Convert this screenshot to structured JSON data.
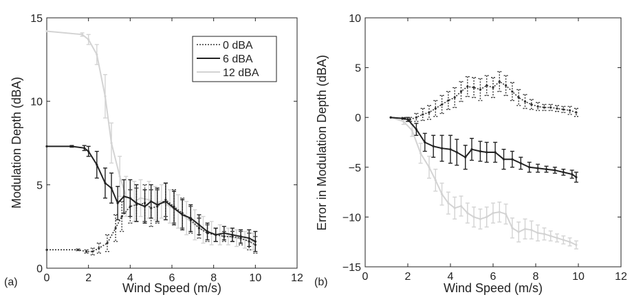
{
  "chart_data": [
    {
      "type": "line",
      "panel_label": "(a)",
      "xlabel": "Wind Speed (m/s)",
      "ylabel": "Modulation Depth (dBA)",
      "xlim": [
        0,
        12
      ],
      "ylim": [
        0,
        15
      ],
      "xticks": [
        "0",
        "2",
        "4",
        "6",
        "8",
        "10",
        "12"
      ],
      "yticks": [
        "0",
        "5",
        "10",
        "15"
      ],
      "grid": false,
      "legend_position": "top-right",
      "error_bars": true,
      "series": [
        {
          "name": "0 dBA",
          "style": "dotted",
          "color": "#333333",
          "x": [
            0.0,
            1.5,
            1.9,
            2.2,
            2.5,
            2.9,
            3.3,
            3.6,
            4.0,
            4.3,
            4.7,
            5.0,
            5.3,
            5.7,
            6.1,
            6.5,
            6.9,
            7.3,
            7.7,
            8.1,
            8.5,
            8.9,
            9.3,
            9.7,
            10.0
          ],
          "y": [
            1.1,
            1.1,
            1.0,
            1.0,
            1.2,
            1.5,
            2.4,
            3.1,
            3.7,
            3.8,
            3.9,
            3.6,
            3.7,
            4.1,
            3.7,
            3.3,
            2.9,
            2.4,
            2.1,
            2.0,
            1.9,
            1.9,
            1.8,
            1.6,
            1.4
          ],
          "err": [
            0,
            0.05,
            0.1,
            0.2,
            0.3,
            0.5,
            0.8,
            0.9,
            1.0,
            1.0,
            1.1,
            1.1,
            1.0,
            1.0,
            1.0,
            0.9,
            0.8,
            0.6,
            0.5,
            0.4,
            0.3,
            0.3,
            0.4,
            0.5,
            0.5
          ]
        },
        {
          "name": "6 dBA",
          "style": "solid",
          "color": "#222222",
          "x": [
            0.0,
            1.2,
            1.8,
            2.0,
            2.4,
            2.8,
            3.1,
            3.4,
            3.7,
            4.0,
            4.3,
            4.7,
            5.0,
            5.3,
            5.7,
            6.1,
            6.5,
            6.9,
            7.3,
            7.7,
            8.1,
            8.5,
            8.9,
            9.3,
            9.7,
            10.0
          ],
          "y": [
            7.3,
            7.3,
            7.2,
            7.0,
            6.2,
            5.1,
            4.8,
            3.9,
            4.3,
            4.2,
            3.9,
            3.7,
            4.0,
            3.8,
            4.0,
            3.6,
            3.2,
            3.0,
            2.6,
            2.2,
            2.0,
            2.1,
            2.0,
            1.9,
            1.8,
            1.6
          ],
          "err": [
            0,
            0.05,
            0.15,
            0.3,
            0.8,
            0.9,
            0.9,
            1.0,
            1.0,
            1.1,
            1.1,
            1.0,
            1.0,
            1.0,
            1.1,
            1.0,
            0.9,
            0.8,
            0.6,
            0.5,
            0.4,
            0.4,
            0.4,
            0.4,
            0.5,
            0.6
          ]
        },
        {
          "name": "12 dBA",
          "style": "solid",
          "color": "#d3d3d3",
          "x": [
            0.0,
            1.7,
            2.0,
            2.4,
            2.8,
            3.1,
            3.5,
            3.8,
            4.2,
            4.5,
            4.9,
            5.2,
            5.5,
            5.9,
            6.3,
            6.7,
            7.1,
            7.5,
            7.9,
            8.3,
            8.7,
            9.1,
            9.5,
            9.9
          ],
          "y": [
            14.2,
            14.0,
            13.7,
            12.8,
            10.3,
            7.5,
            5.5,
            4.3,
            4.0,
            4.2,
            4.1,
            3.9,
            4.0,
            3.7,
            3.4,
            3.0,
            2.6,
            2.3,
            2.1,
            2.0,
            1.9,
            1.8,
            1.7,
            1.6
          ],
          "err": [
            0,
            0.1,
            0.3,
            0.6,
            1.3,
            1.2,
            1.2,
            1.2,
            1.2,
            1.1,
            1.1,
            1.0,
            1.0,
            1.0,
            1.0,
            1.0,
            0.9,
            0.8,
            0.7,
            0.6,
            0.5,
            0.5,
            0.5,
            0.5
          ]
        }
      ]
    },
    {
      "type": "line",
      "panel_label": "(b)",
      "xlabel": "Wind Speed (m/s)",
      "ylabel": "Error in Modulation Depth (dBA)",
      "xlim": [
        0,
        12
      ],
      "ylim": [
        -15,
        10
      ],
      "xticks": [
        "0",
        "2",
        "4",
        "6",
        "8",
        "10",
        "12"
      ],
      "yticks": [
        "−15",
        "−10",
        "−5",
        "0",
        "5",
        "10"
      ],
      "grid": false,
      "error_bars": true,
      "series": [
        {
          "name": "0 dBA",
          "style": "dotted",
          "color": "#333333",
          "x": [
            1.2,
            1.8,
            2.1,
            2.4,
            2.7,
            3.0,
            3.3,
            3.6,
            3.9,
            4.2,
            4.5,
            4.8,
            5.1,
            5.4,
            5.7,
            6.0,
            6.3,
            6.6,
            6.9,
            7.2,
            7.5,
            7.8,
            8.1,
            8.4,
            8.7,
            9.0,
            9.3,
            9.6,
            9.9
          ],
          "y": [
            0.0,
            -0.1,
            -0.2,
            0.0,
            0.3,
            0.5,
            0.9,
            1.3,
            1.7,
            2.0,
            2.6,
            3.1,
            3.0,
            2.8,
            3.2,
            3.0,
            3.6,
            3.2,
            2.6,
            2.0,
            1.6,
            1.3,
            1.1,
            1.0,
            1.0,
            0.9,
            0.8,
            0.7,
            0.5
          ],
          "err": [
            0,
            0.1,
            0.2,
            0.4,
            0.6,
            0.7,
            0.8,
            0.9,
            0.9,
            1.0,
            1.0,
            1.0,
            1.0,
            1.1,
            1.0,
            1.0,
            1.0,
            1.0,
            0.9,
            0.8,
            0.7,
            0.5,
            0.4,
            0.3,
            0.3,
            0.3,
            0.3,
            0.4,
            0.4
          ]
        },
        {
          "name": "6 dBA",
          "style": "solid",
          "color": "#222222",
          "x": [
            1.2,
            1.8,
            2.0,
            2.4,
            2.8,
            3.2,
            3.6,
            4.0,
            4.3,
            4.7,
            5.0,
            5.4,
            5.7,
            6.1,
            6.5,
            6.9,
            7.3,
            7.7,
            8.1,
            8.5,
            8.9,
            9.3,
            9.7,
            9.9
          ],
          "y": [
            0.0,
            -0.1,
            -0.2,
            -1.2,
            -2.5,
            -2.9,
            -3.1,
            -3.2,
            -3.5,
            -4.0,
            -3.2,
            -3.4,
            -3.5,
            -3.5,
            -4.2,
            -4.2,
            -4.6,
            -5.0,
            -5.1,
            -5.2,
            -5.3,
            -5.5,
            -5.7,
            -6.0
          ],
          "err": [
            0,
            0.05,
            0.2,
            0.6,
            0.9,
            1.1,
            1.3,
            1.4,
            1.3,
            1.2,
            1.1,
            1.0,
            1.0,
            1.0,
            1.0,
            0.8,
            0.6,
            0.5,
            0.4,
            0.3,
            0.3,
            0.3,
            0.4,
            0.5
          ]
        },
        {
          "name": "12 dBA",
          "style": "solid",
          "color": "#d3d3d3",
          "x": [
            1.2,
            1.8,
            2.2,
            2.6,
            3.0,
            3.3,
            3.6,
            3.9,
            4.2,
            4.5,
            4.8,
            5.1,
            5.4,
            5.7,
            6.0,
            6.3,
            6.6,
            6.9,
            7.2,
            7.5,
            7.8,
            8.1,
            8.4,
            8.7,
            9.0,
            9.3,
            9.6,
            9.9
          ],
          "y": [
            0.0,
            -0.4,
            -1.3,
            -3.6,
            -5.0,
            -6.3,
            -7.7,
            -8.6,
            -9.1,
            -8.9,
            -9.6,
            -10.0,
            -10.2,
            -10.0,
            -9.6,
            -9.5,
            -9.7,
            -11.1,
            -11.5,
            -11.2,
            -11.3,
            -11.6,
            -11.7,
            -11.9,
            -12.1,
            -12.3,
            -12.5,
            -12.8
          ],
          "err": [
            0,
            0.3,
            0.6,
            1.0,
            1.1,
            1.1,
            1.1,
            1.1,
            1.1,
            1.0,
            1.0,
            1.0,
            1.0,
            1.0,
            1.0,
            1.0,
            1.0,
            1.0,
            1.0,
            1.0,
            0.9,
            0.8,
            0.6,
            0.5,
            0.4,
            0.4,
            0.4,
            0.4
          ]
        }
      ]
    }
  ]
}
